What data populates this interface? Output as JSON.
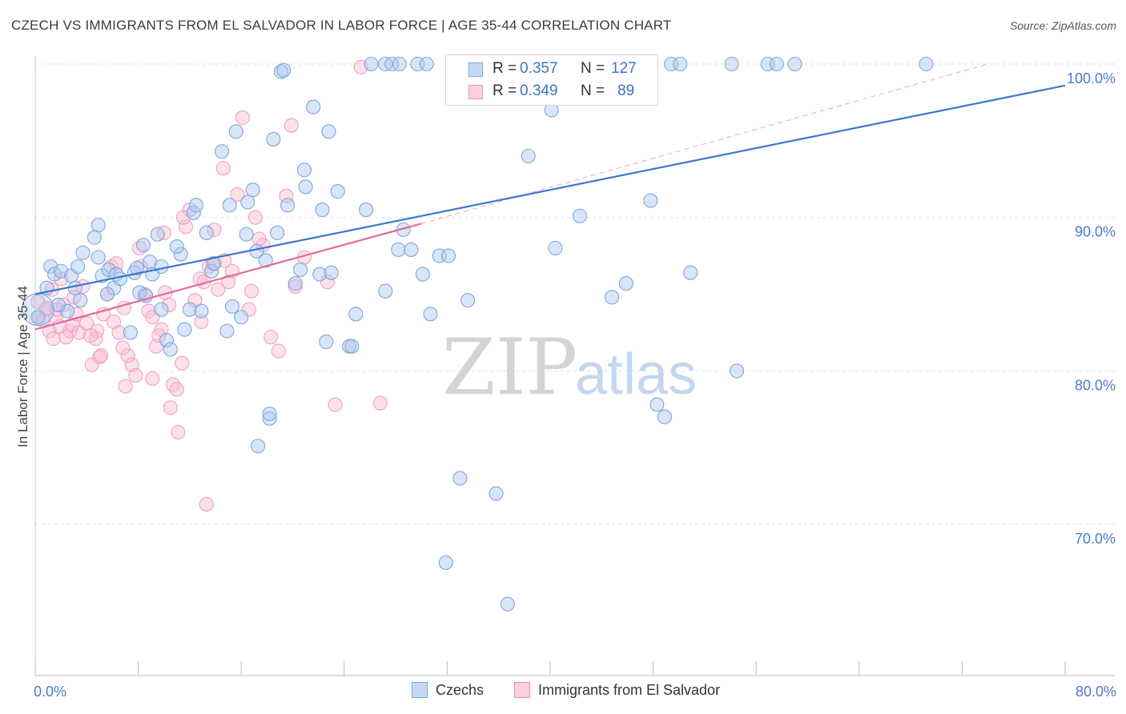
{
  "header": {
    "title": "CZECH VS IMMIGRANTS FROM EL SALVADOR IN LABOR FORCE | AGE 35-44 CORRELATION CHART",
    "source": "Source: ZipAtlas.com"
  },
  "watermark": {
    "zip": "ZIP",
    "atlas": "atlas"
  },
  "legend": {
    "series": [
      {
        "name": "Czechs",
        "r_label": "R =",
        "r_value": "0.357",
        "n_label": "N =",
        "n_value": "127",
        "color": "#7ba7e0",
        "fill": "#c5d9f4"
      },
      {
        "name": "Immigrants from El Salvador",
        "r_label": "R =",
        "r_value": "0.349",
        "n_label": "N =",
        "n_value": "89",
        "color": "#f08ab0",
        "fill": "#fbd0e0"
      }
    ]
  },
  "chart_data": {
    "type": "scatter",
    "title": "CZECH VS IMMIGRANTS FROM EL SALVADOR IN LABOR FORCE | AGE 35-44 CORRELATION CHART",
    "xlabel": "",
    "ylabel": "In Labor Force | Age 35-44",
    "xlim": [
      0,
      80
    ],
    "ylim": [
      60,
      102
    ],
    "x_tick_labels": [
      {
        "value": 0,
        "label": "0.0%"
      },
      {
        "value": 80,
        "label": "80.0%"
      }
    ],
    "y_tick_labels": [
      {
        "value": 100,
        "label": "100.0%"
      },
      {
        "value": 90,
        "label": "90.0%"
      },
      {
        "value": 80,
        "label": "80.0%"
      },
      {
        "value": 70,
        "label": "70.0%"
      }
    ],
    "grid": true,
    "series": [
      {
        "name": "Czechs",
        "color": "#3f78cc",
        "trend": {
          "x": [
            0,
            80
          ],
          "y": [
            85.0,
            98.6
          ]
        },
        "points": [
          [
            0.2,
            83.5
          ],
          [
            0.9,
            85.4
          ],
          [
            1.2,
            86.8
          ],
          [
            1.5,
            86.3
          ],
          [
            2.0,
            86.5
          ],
          [
            2.8,
            86.2
          ],
          [
            3.1,
            85.4
          ],
          [
            3.3,
            86.8
          ],
          [
            3.5,
            84.6
          ],
          [
            3.7,
            87.7
          ],
          [
            4.6,
            88.7
          ],
          [
            4.9,
            89.5
          ],
          [
            4.9,
            87.4
          ],
          [
            5.2,
            86.2
          ],
          [
            5.7,
            86.6
          ],
          [
            6.1,
            85.4
          ],
          [
            6.3,
            86.3
          ],
          [
            6.6,
            86.0
          ],
          [
            7.4,
            82.5
          ],
          [
            7.7,
            86.4
          ],
          [
            8.1,
            85.1
          ],
          [
            8.4,
            88.2
          ],
          [
            8.6,
            84.9
          ],
          [
            8.9,
            87.1
          ],
          [
            9.1,
            86.3
          ],
          [
            9.5,
            88.9
          ],
          [
            9.8,
            86.8
          ],
          [
            10.2,
            82.0
          ],
          [
            10.5,
            81.4
          ],
          [
            11.3,
            87.6
          ],
          [
            11.6,
            82.7
          ],
          [
            12.0,
            84.0
          ],
          [
            12.3,
            90.3
          ],
          [
            12.5,
            90.8
          ],
          [
            12.9,
            83.9
          ],
          [
            13.3,
            89.0
          ],
          [
            13.7,
            86.5
          ],
          [
            13.9,
            87.0
          ],
          [
            14.5,
            94.3
          ],
          [
            14.9,
            82.6
          ],
          [
            15.1,
            90.8
          ],
          [
            15.3,
            84.2
          ],
          [
            15.6,
            95.6
          ],
          [
            16.0,
            83.5
          ],
          [
            16.4,
            88.9
          ],
          [
            16.9,
            91.8
          ],
          [
            17.2,
            87.8
          ],
          [
            17.9,
            87.2
          ],
          [
            18.2,
            76.9
          ],
          [
            18.5,
            95.1
          ],
          [
            18.8,
            89.0
          ],
          [
            19.1,
            99.5
          ],
          [
            19.6,
            90.8
          ],
          [
            20.2,
            85.7
          ],
          [
            20.6,
            86.6
          ],
          [
            20.9,
            93.1
          ],
          [
            21.0,
            92.0
          ],
          [
            21.6,
            97.2
          ],
          [
            22.1,
            86.3
          ],
          [
            22.3,
            90.5
          ],
          [
            22.6,
            81.9
          ],
          [
            23.0,
            86.4
          ],
          [
            23.5,
            91.7
          ],
          [
            24.4,
            81.6
          ],
          [
            24.6,
            81.6
          ],
          [
            24.9,
            83.7
          ],
          [
            25.7,
            90.5
          ],
          [
            27.2,
            85.2
          ],
          [
            28.2,
            87.9
          ],
          [
            28.6,
            89.2
          ],
          [
            29.2,
            87.9
          ],
          [
            30.1,
            86.3
          ],
          [
            30.7,
            83.7
          ],
          [
            31.4,
            87.5
          ],
          [
            32.1,
            87.5
          ],
          [
            33.0,
            73.0
          ],
          [
            33.6,
            84.6
          ],
          [
            35.8,
            72.0
          ],
          [
            36.7,
            64.8
          ],
          [
            38.3,
            94.0
          ],
          [
            40.1,
            97.0
          ],
          [
            40.4,
            88.0
          ],
          [
            42.3,
            90.1
          ],
          [
            44.8,
            84.8
          ],
          [
            45.9,
            85.7
          ],
          [
            47.8,
            91.1
          ],
          [
            48.3,
            77.8
          ],
          [
            48.9,
            77.0
          ],
          [
            50.9,
            86.4
          ],
          [
            54.5,
            80.0
          ],
          [
            26.1,
            100
          ],
          [
            27.2,
            100
          ],
          [
            27.7,
            100
          ],
          [
            28.3,
            100
          ],
          [
            29.7,
            100
          ],
          [
            30.4,
            100
          ],
          [
            33.3,
            100
          ],
          [
            34.0,
            100
          ],
          [
            35.4,
            100
          ],
          [
            36.1,
            100
          ],
          [
            37.5,
            100
          ],
          [
            38.9,
            100
          ],
          [
            40.3,
            100
          ],
          [
            41.0,
            100
          ],
          [
            42.4,
            100
          ],
          [
            43.1,
            100
          ],
          [
            44.5,
            100
          ],
          [
            45.2,
            100
          ],
          [
            49.4,
            100
          ],
          [
            50.1,
            100
          ],
          [
            54.1,
            100
          ],
          [
            56.9,
            100
          ],
          [
            57.6,
            100
          ],
          [
            59.0,
            100
          ],
          [
            69.2,
            100
          ],
          [
            17.3,
            75.1
          ],
          [
            18.2,
            77.2
          ],
          [
            31.9,
            67.5
          ],
          [
            19.3,
            99.6
          ],
          [
            16.5,
            91.0
          ],
          [
            11.0,
            88.1
          ],
          [
            7.9,
            86.7
          ],
          [
            5.6,
            85.0
          ],
          [
            2.5,
            83.9
          ],
          [
            1.8,
            84.3
          ],
          [
            9.8,
            84.0
          ],
          [
            22.8,
            95.6
          ]
        ]
      },
      {
        "name": "Immigrants from El Salvador",
        "color": "#e36c96",
        "trend": {
          "x": [
            0,
            30
          ],
          "y": [
            82.7,
            89.6
          ]
        },
        "trend_dashed": {
          "x": [
            30,
            74
          ],
          "y": [
            89.6,
            100.0
          ]
        },
        "points": [
          [
            0.3,
            83.5
          ],
          [
            0.6,
            83.3
          ],
          [
            0.8,
            84.0
          ],
          [
            1.1,
            82.6
          ],
          [
            1.4,
            82.1
          ],
          [
            1.6,
            83.5
          ],
          [
            1.9,
            82.9
          ],
          [
            2.2,
            84.3
          ],
          [
            2.4,
            82.2
          ],
          [
            2.7,
            82.6
          ],
          [
            2.9,
            83.0
          ],
          [
            3.2,
            83.7
          ],
          [
            3.4,
            82.5
          ],
          [
            3.7,
            85.5
          ],
          [
            4.0,
            83.1
          ],
          [
            4.4,
            80.4
          ],
          [
            4.7,
            82.1
          ],
          [
            5.0,
            80.9
          ],
          [
            5.3,
            83.7
          ],
          [
            5.6,
            85.0
          ],
          [
            5.9,
            86.8
          ],
          [
            6.1,
            83.2
          ],
          [
            6.5,
            82.5
          ],
          [
            6.9,
            84.1
          ],
          [
            7.2,
            81.0
          ],
          [
            7.5,
            80.4
          ],
          [
            7.8,
            79.7
          ],
          [
            8.2,
            86.8
          ],
          [
            8.5,
            85.0
          ],
          [
            8.8,
            83.9
          ],
          [
            9.1,
            83.5
          ],
          [
            9.4,
            81.6
          ],
          [
            9.8,
            82.7
          ],
          [
            10.1,
            85.1
          ],
          [
            10.4,
            84.3
          ],
          [
            10.7,
            79.1
          ],
          [
            11.0,
            78.8
          ],
          [
            11.4,
            80.5
          ],
          [
            11.7,
            89.4
          ],
          [
            12.0,
            90.5
          ],
          [
            12.4,
            84.6
          ],
          [
            12.8,
            86.0
          ],
          [
            13.1,
            85.8
          ],
          [
            13.5,
            86.8
          ],
          [
            13.8,
            87.0
          ],
          [
            14.2,
            85.3
          ],
          [
            14.6,
            93.2
          ],
          [
            15.0,
            85.8
          ],
          [
            15.3,
            86.5
          ],
          [
            15.7,
            91.5
          ],
          [
            16.1,
            96.5
          ],
          [
            16.6,
            84.0
          ],
          [
            17.1,
            90.0
          ],
          [
            17.7,
            88.2
          ],
          [
            18.3,
            82.2
          ],
          [
            18.9,
            81.3
          ],
          [
            19.5,
            91.4
          ],
          [
            20.2,
            85.5
          ],
          [
            20.9,
            87.4
          ],
          [
            26.8,
            77.9
          ],
          [
            23.3,
            77.8
          ],
          [
            25.3,
            99.8
          ],
          [
            13.3,
            71.3
          ],
          [
            11.1,
            76.0
          ],
          [
            9.1,
            79.5
          ],
          [
            10.5,
            77.6
          ],
          [
            7.0,
            79.0
          ],
          [
            4.8,
            82.6
          ],
          [
            3.0,
            84.8
          ],
          [
            2.0,
            86.0
          ],
          [
            6.3,
            87.0
          ],
          [
            8.1,
            88.0
          ],
          [
            10.0,
            89.0
          ],
          [
            11.5,
            90.0
          ],
          [
            13.9,
            89.2
          ],
          [
            17.4,
            88.6
          ],
          [
            19.9,
            96.0
          ],
          [
            22.7,
            85.8
          ],
          [
            16.8,
            85.2
          ],
          [
            14.7,
            87.2
          ],
          [
            12.9,
            83.2
          ],
          [
            9.6,
            82.3
          ],
          [
            6.8,
            81.5
          ],
          [
            5.1,
            81.0
          ],
          [
            4.3,
            82.3
          ],
          [
            1.3,
            85.3
          ],
          [
            0.9,
            84.1
          ],
          [
            0.2,
            84.5
          ],
          [
            1.7,
            84.0
          ]
        ]
      }
    ]
  }
}
